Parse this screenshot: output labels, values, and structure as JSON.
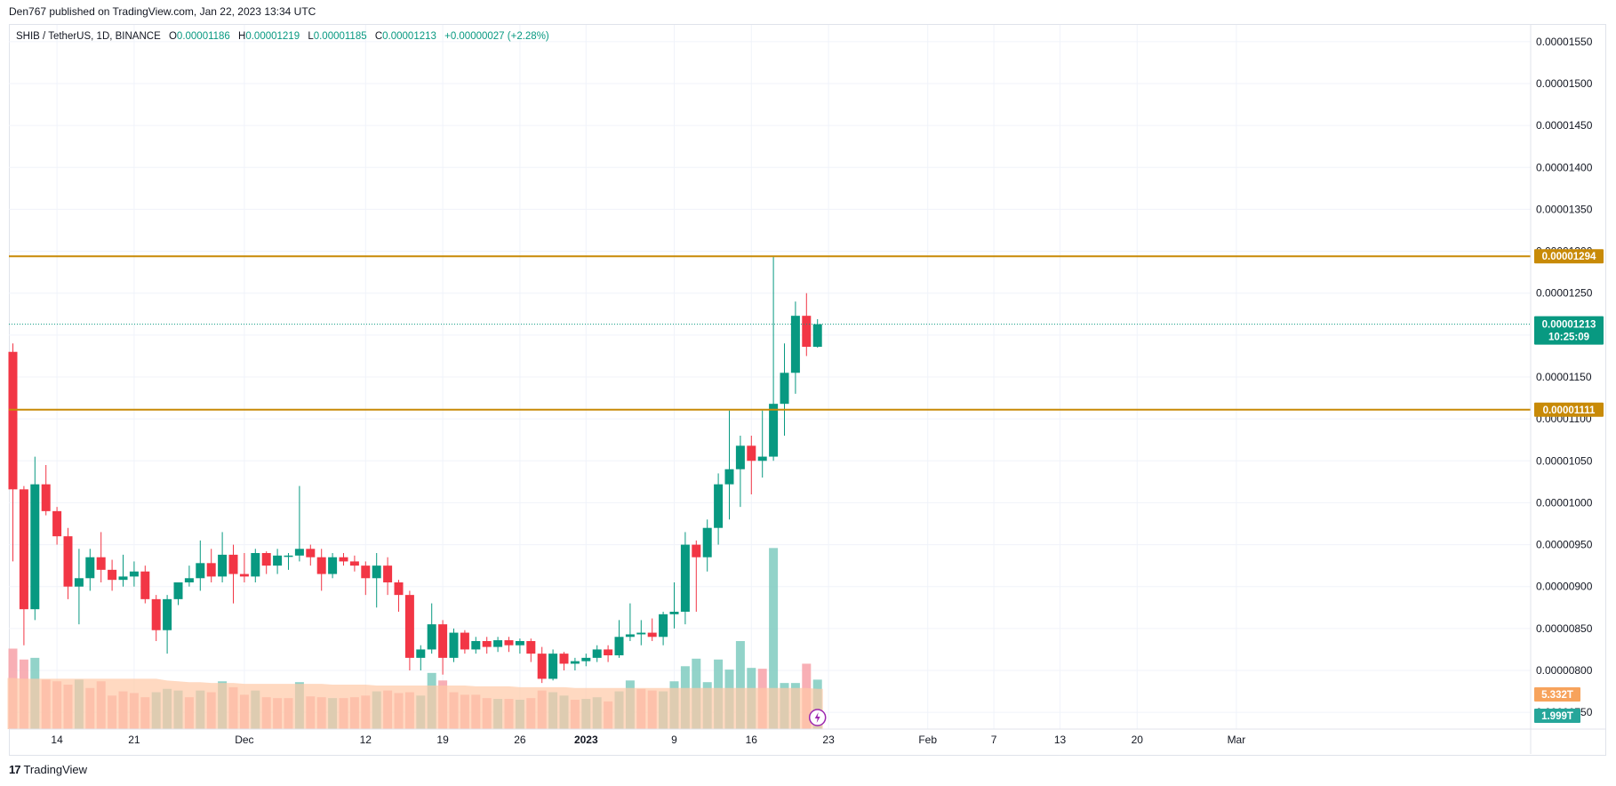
{
  "header": {
    "publish_text": "Den767 published on TradingView.com, Jan 22, 2023 13:34 UTC"
  },
  "legend": {
    "symbol": "SHIB / TetherUS, 1D, BINANCE",
    "open_key": "O",
    "open_val": "0.00001186",
    "high_key": "H",
    "high_val": "0.00001219",
    "low_key": "L",
    "low_val": "0.00001185",
    "close_key": "C",
    "close_val": "0.00001213",
    "change": "+0.00000027 (+2.28%)"
  },
  "footer": {
    "logo_text": "17",
    "brand": "TradingView"
  },
  "colors": {
    "up": "#089981",
    "down": "#f23645",
    "up_volume": "#7fcbc0",
    "down_volume": "#f7a1a8",
    "volume_ma": "#ffc9a6",
    "level_line": "#c88a07",
    "current_price_bg": "#089981",
    "vol_tag_orange": "#f7a35c",
    "vol_tag_teal": "#26a69a"
  },
  "chart_data": {
    "type": "candlestick",
    "interval": "1D",
    "y_axis": {
      "min": 7.3e-06,
      "max": 1.57e-05,
      "ticks": [
        "0.00001550",
        "0.00001500",
        "0.00001450",
        "0.00001400",
        "0.00001350",
        "0.00001300",
        "0.00001250",
        "0.00001200",
        "0.00001150",
        "0.00001100",
        "0.00001050",
        "0.00001000",
        "0.00000950",
        "0.00000900",
        "0.00000850",
        "0.00000800",
        "0.00000750"
      ],
      "tick_values": [
        1.55e-05,
        1.5e-05,
        1.45e-05,
        1.4e-05,
        1.35e-05,
        1.3e-05,
        1.25e-05,
        1.2e-05,
        1.15e-05,
        1.1e-05,
        1.05e-05,
        1e-05,
        9.5e-06,
        9e-06,
        8.5e-06,
        8e-06,
        7.5e-06
      ]
    },
    "x_axis": {
      "labels": [
        {
          "text": "14",
          "day": 4
        },
        {
          "text": "21",
          "day": 11
        },
        {
          "text": "Dec",
          "day": 21
        },
        {
          "text": "12",
          "day": 32
        },
        {
          "text": "19",
          "day": 39
        },
        {
          "text": "26",
          "day": 46
        },
        {
          "text": "2023",
          "day": 52,
          "bold": true
        },
        {
          "text": "9",
          "day": 60
        },
        {
          "text": "16",
          "day": 67
        },
        {
          "text": "23",
          "day": 74
        },
        {
          "text": "Feb",
          "day": 83
        },
        {
          "text": "7",
          "day": 89
        },
        {
          "text": "13",
          "day": 95
        },
        {
          "text": "20",
          "day": 102
        },
        {
          "text": "Mar",
          "day": 111
        }
      ]
    },
    "horizontal_levels": [
      {
        "price": 1.294e-05,
        "label": "0.00001294"
      },
      {
        "price": 1.111e-05,
        "label": "0.00001111"
      }
    ],
    "current_price": {
      "price": 1.213e-05,
      "label": "0.00001213",
      "countdown": "10:25:09"
    },
    "volume_tags": [
      {
        "label": "5.332T"
      },
      {
        "label": "1.999T"
      }
    ],
    "candles": [
      [
        1.18e-05,
        1.19e-05,
        9.3e-06,
        1.016e-05
      ],
      [
        1.016e-05,
        1.02e-05,
        8.3e-06,
        8.73e-06
      ],
      [
        8.73e-06,
        1.055e-05,
        8.6e-06,
        1.022e-05
      ],
      [
        1.022e-05,
        1.045e-05,
        9.85e-06,
        9.9e-06
      ],
      [
        9.9e-06,
        9.95e-06,
        9.5e-06,
        9.6e-06
      ],
      [
        9.6e-06,
        9.7e-06,
        8.85e-06,
        9e-06
      ],
      [
        9e-06,
        9.45e-06,
        8.55e-06,
        9.1e-06
      ],
      [
        9.1e-06,
        9.45e-06,
        8.95e-06,
        9.35e-06
      ],
      [
        9.35e-06,
        9.65e-06,
        9.05e-06,
        9.2e-06
      ],
      [
        9.2e-06,
        9.32e-06,
        8.95e-06,
        9.08e-06
      ],
      [
        9.08e-06,
        9.38e-06,
        9e-06,
        9.12e-06
      ],
      [
        9.12e-06,
        9.3e-06,
        9e-06,
        9.18e-06
      ],
      [
        9.18e-06,
        9.25e-06,
        8.8e-06,
        8.85e-06
      ],
      [
        8.85e-06,
        8.9e-06,
        8.35e-06,
        8.48e-06
      ],
      [
        8.48e-06,
        8.9e-06,
        8.2e-06,
        8.85e-06
      ],
      [
        8.85e-06,
        9.05e-06,
        8.78e-06,
        9.05e-06
      ],
      [
        9.05e-06,
        9.25e-06,
        9e-06,
        9.1e-06
      ],
      [
        9.1e-06,
        9.55e-06,
        8.95e-06,
        9.28e-06
      ],
      [
        9.28e-06,
        9.45e-06,
        9.05e-06,
        9.12e-06
      ],
      [
        9.12e-06,
        9.65e-06,
        9.05e-06,
        9.38e-06
      ],
      [
        9.38e-06,
        9.5e-06,
        8.8e-06,
        9.15e-06
      ],
      [
        9.15e-06,
        9.4e-06,
        9.05e-06,
        9.12e-06
      ],
      [
        9.12e-06,
        9.45e-06,
        9.05e-06,
        9.4e-06
      ],
      [
        9.4e-06,
        9.42e-06,
        9.15e-06,
        9.25e-06
      ],
      [
        9.25e-06,
        9.45e-06,
        9.15e-06,
        9.37e-06
      ],
      [
        9.37e-06,
        9.4e-06,
        9.2e-06,
        9.37e-06
      ],
      [
        9.37e-06,
        1.02e-05,
        9.3e-06,
        9.45e-06
      ],
      [
        9.45e-06,
        9.5e-06,
        9.25e-06,
        9.35e-06
      ],
      [
        9.35e-06,
        9.45e-06,
        8.95e-06,
        9.15e-06
      ],
      [
        9.15e-06,
        9.4e-06,
        9.1e-06,
        9.35e-06
      ],
      [
        9.35e-06,
        9.4e-06,
        9.25e-06,
        9.3e-06
      ],
      [
        9.3e-06,
        9.37e-06,
        9.18e-06,
        9.25e-06
      ],
      [
        9.25e-06,
        9.3e-06,
        8.9e-06,
        9.1e-06
      ],
      [
        9.1e-06,
        9.4e-06,
        8.75e-06,
        9.25e-06
      ],
      [
        9.25e-06,
        9.35e-06,
        8.9e-06,
        9.05e-06
      ],
      [
        9.05e-06,
        9.08e-06,
        8.7e-06,
        8.9e-06
      ],
      [
        8.9e-06,
        8.95e-06,
        8e-06,
        8.15e-06
      ],
      [
        8.15e-06,
        8.3e-06,
        8e-06,
        8.25e-06
      ],
      [
        8.25e-06,
        8.8e-06,
        8.2e-06,
        8.55e-06
      ],
      [
        8.55e-06,
        8.6e-06,
        7.95e-06,
        8.15e-06
      ],
      [
        8.15e-06,
        8.5e-06,
        8.1e-06,
        8.45e-06
      ],
      [
        8.45e-06,
        8.48e-06,
        8.2e-06,
        8.25e-06
      ],
      [
        8.25e-06,
        8.4e-06,
        8.2e-06,
        8.35e-06
      ],
      [
        8.35e-06,
        8.4e-06,
        8.2e-06,
        8.28e-06
      ],
      [
        8.28e-06,
        8.4e-06,
        8.22e-06,
        8.36e-06
      ],
      [
        8.36e-06,
        8.4e-06,
        8.22e-06,
        8.3e-06
      ],
      [
        8.3e-06,
        8.38e-06,
        8.2e-06,
        8.35e-06
      ],
      [
        8.35e-06,
        8.38e-06,
        8.1e-06,
        8.2e-06
      ],
      [
        8.2e-06,
        8.28e-06,
        7.85e-06,
        7.9e-06
      ],
      [
        7.9e-06,
        8.25e-06,
        7.88e-06,
        8.2e-06
      ],
      [
        8.2e-06,
        8.22e-06,
        8e-06,
        8.08e-06
      ],
      [
        8.08e-06,
        8.15e-06,
        8e-06,
        8.11e-06
      ],
      [
        8.11e-06,
        8.2e-06,
        8.05e-06,
        8.15e-06
      ],
      [
        8.15e-06,
        8.3e-06,
        8.1e-06,
        8.25e-06
      ],
      [
        8.25e-06,
        8.3e-06,
        8.1e-06,
        8.18e-06
      ],
      [
        8.18e-06,
        8.6e-06,
        8.15e-06,
        8.4e-06
      ],
      [
        8.4e-06,
        8.8e-06,
        8.35e-06,
        8.43e-06
      ],
      [
        8.43e-06,
        8.6e-06,
        8.3e-06,
        8.45e-06
      ],
      [
        8.45e-06,
        8.62e-06,
        8.35e-06,
        8.4e-06
      ],
      [
        8.4e-06,
        8.7e-06,
        8.3e-06,
        8.67e-06
      ],
      [
        8.67e-06,
        9.05e-06,
        8.5e-06,
        8.7e-06
      ],
      [
        8.7e-06,
        9.65e-06,
        8.55e-06,
        9.5e-06
      ],
      [
        9.5e-06,
        9.55e-06,
        8.7e-06,
        9.35e-06
      ],
      [
        9.35e-06,
        9.8e-06,
        9.18e-06,
        9.7e-06
      ],
      [
        9.7e-06,
        1.035e-05,
        9.5e-06,
        1.022e-05
      ],
      [
        1.022e-05,
        1.11e-05,
        9.8e-06,
        1.04e-05
      ],
      [
        1.04e-05,
        1.08e-05,
        9.95e-06,
        1.068e-05
      ],
      [
        1.068e-05,
        1.08e-05,
        1.01e-05,
        1.05e-05
      ],
      [
        1.05e-05,
        1.11e-05,
        1.03e-05,
        1.055e-05
      ],
      [
        1.055e-05,
        1.294e-05,
        1.05e-05,
        1.118e-05
      ],
      [
        1.118e-05,
        1.19e-05,
        1.08e-05,
        1.155e-05
      ],
      [
        1.155e-05,
        1.24e-05,
        1.13e-05,
        1.223e-05
      ],
      [
        1.223e-05,
        1.25e-05,
        1.175e-05,
        1.186e-05
      ],
      [
        1.186e-05,
        1.219e-05,
        1.185e-05,
        1.213e-05
      ]
    ],
    "volumes": [
      [
        8.26e-06,
        false
      ],
      [
        8.13e-06,
        false
      ],
      [
        8.15e-06,
        true
      ],
      [
        7.89e-06,
        false
      ],
      [
        7.87e-06,
        false
      ],
      [
        7.83e-06,
        false
      ],
      [
        7.89e-06,
        true
      ],
      [
        7.79e-06,
        false
      ],
      [
        7.87e-06,
        false
      ],
      [
        7.7e-06,
        false
      ],
      [
        7.75e-06,
        false
      ],
      [
        7.73e-06,
        false
      ],
      [
        7.68e-06,
        false
      ],
      [
        7.74e-06,
        true
      ],
      [
        7.78e-06,
        true
      ],
      [
        7.76e-06,
        true
      ],
      [
        7.68e-06,
        false
      ],
      [
        7.76e-06,
        true
      ],
      [
        7.74e-06,
        false
      ],
      [
        7.87e-06,
        true
      ],
      [
        7.8e-06,
        false
      ],
      [
        7.71e-06,
        false
      ],
      [
        7.76e-06,
        true
      ],
      [
        7.68e-06,
        false
      ],
      [
        7.67e-06,
        false
      ],
      [
        7.67e-06,
        false
      ],
      [
        7.86e-06,
        true
      ],
      [
        7.69e-06,
        false
      ],
      [
        7.68e-06,
        false
      ],
      [
        7.67e-06,
        true
      ],
      [
        7.67e-06,
        false
      ],
      [
        7.68e-06,
        false
      ],
      [
        7.7e-06,
        false
      ],
      [
        7.75e-06,
        true
      ],
      [
        7.76e-06,
        false
      ],
      [
        7.73e-06,
        false
      ],
      [
        7.74e-06,
        false
      ],
      [
        7.7e-06,
        true
      ],
      [
        7.97e-06,
        true
      ],
      [
        7.88e-06,
        false
      ],
      [
        7.74e-06,
        false
      ],
      [
        7.71e-06,
        false
      ],
      [
        7.71e-06,
        false
      ],
      [
        7.67e-06,
        false
      ],
      [
        7.66e-06,
        true
      ],
      [
        7.66e-06,
        false
      ],
      [
        7.65e-06,
        true
      ],
      [
        7.67e-06,
        false
      ],
      [
        7.76e-06,
        false
      ],
      [
        7.74e-06,
        true
      ],
      [
        7.7e-06,
        true
      ],
      [
        7.65e-06,
        false
      ],
      [
        7.66e-06,
        true
      ],
      [
        7.68e-06,
        true
      ],
      [
        7.63e-06,
        false
      ],
      [
        7.75e-06,
        true
      ],
      [
        7.88e-06,
        true
      ],
      [
        7.78e-06,
        false
      ],
      [
        7.76e-06,
        false
      ],
      [
        7.75e-06,
        true
      ],
      [
        7.87e-06,
        true
      ],
      [
        8.05e-06,
        true
      ],
      [
        8.14e-06,
        true
      ],
      [
        7.86e-06,
        true
      ],
      [
        8.13e-06,
        true
      ],
      [
        8.01e-06,
        true
      ],
      [
        8.35e-06,
        true
      ],
      [
        8.03e-06,
        true
      ],
      [
        8.02e-06,
        false
      ],
      [
        9.46e-06,
        true
      ],
      [
        7.85e-06,
        true
      ],
      [
        7.85e-06,
        true
      ],
      [
        8.08e-06,
        false
      ],
      [
        7.89e-06,
        true
      ]
    ],
    "volume_ma": [
      7.91e-06,
      7.9e-06,
      7.9e-06,
      7.9e-06,
      7.9e-06,
      7.9e-06,
      7.9e-06,
      7.9e-06,
      7.9e-06,
      7.9e-06,
      7.9e-06,
      7.9e-06,
      7.9e-06,
      7.9e-06,
      7.88e-06,
      7.87e-06,
      7.86e-06,
      7.86e-06,
      7.85e-06,
      7.85e-06,
      7.85e-06,
      7.84e-06,
      7.84e-06,
      7.84e-06,
      7.84e-06,
      7.84e-06,
      7.84e-06,
      7.84e-06,
      7.84e-06,
      7.83e-06,
      7.83e-06,
      7.83e-06,
      7.83e-06,
      7.82e-06,
      7.82e-06,
      7.82e-06,
      7.82e-06,
      7.82e-06,
      7.82e-06,
      7.82e-06,
      7.82e-06,
      7.82e-06,
      7.81e-06,
      7.81e-06,
      7.81e-06,
      7.81e-06,
      7.8e-06,
      7.8e-06,
      7.8e-06,
      7.8e-06,
      7.8e-06,
      7.79e-06,
      7.79e-06,
      7.79e-06,
      7.79e-06,
      7.79e-06,
      7.79e-06,
      7.79e-06,
      7.79e-06,
      7.79e-06,
      7.79e-06,
      7.79e-06,
      7.79e-06,
      7.79e-06,
      7.79e-06,
      7.79e-06,
      7.79e-06,
      7.79e-06,
      7.79e-06,
      7.79e-06,
      7.79e-06,
      7.79e-06,
      7.79e-06,
      7.78e-06
    ]
  }
}
